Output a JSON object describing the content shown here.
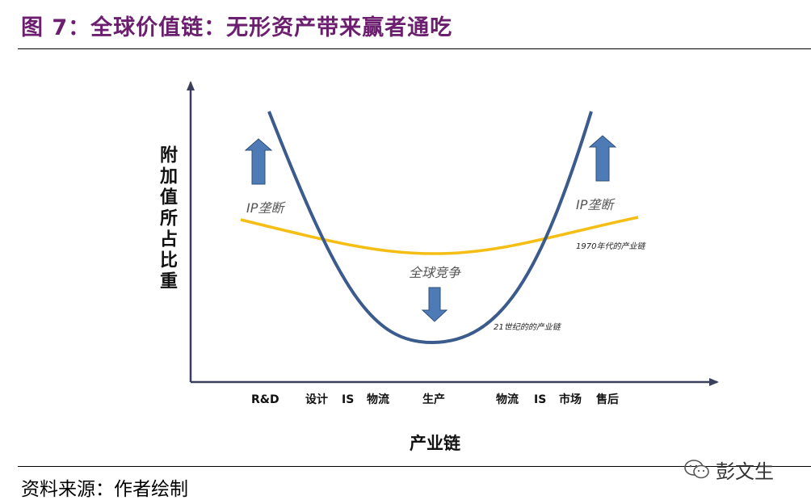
{
  "header": {
    "title": "图 7：全球价值链：无形资产带来赢者通吃"
  },
  "diagram": {
    "y_axis_label": "附加值所占比重",
    "x_axis_label": "产业链",
    "x_categories": [
      "R&D",
      "设计",
      "IS",
      "物流",
      "生产",
      "物流",
      "IS",
      "市场",
      "售后"
    ],
    "annotations": {
      "ip_left": "IP垄断",
      "ip_right": "IP垄断",
      "global_competition": "全球竞争"
    },
    "curves": [
      {
        "name": "1970年代的产业链",
        "color": "#f5be14"
      },
      {
        "name": "21世纪的的产业链",
        "color": "#3b5b8c"
      }
    ],
    "arrow_color": "#4e7bb5"
  },
  "footer": {
    "source": "资料来源：作者绘制"
  },
  "watermark": {
    "text": "彭文生",
    "icon": "wechat-icon"
  }
}
